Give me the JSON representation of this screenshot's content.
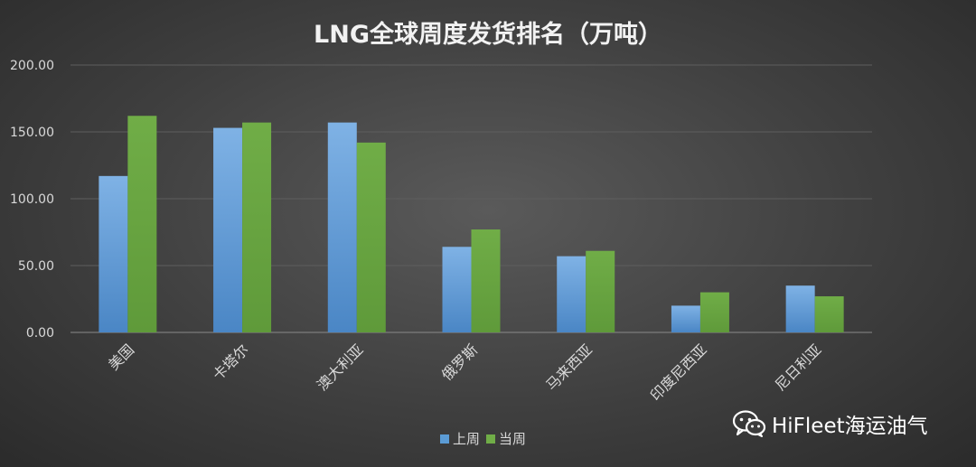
{
  "chart_data": {
    "type": "bar",
    "title": "LNG全球周度发货排名（万吨）",
    "categories": [
      "美国",
      "卡塔尔",
      "澳大利亚",
      "俄罗斯",
      "马来西亚",
      "印度尼西亚",
      "尼日利亚"
    ],
    "series": [
      {
        "name": "上周",
        "color": "#5b9bd5",
        "values": [
          117,
          153,
          157,
          64,
          57,
          20,
          35
        ]
      },
      {
        "name": "当周",
        "color": "#70ad47",
        "values": [
          162,
          157,
          142,
          77,
          61,
          30,
          27
        ]
      }
    ],
    "ylim": [
      0,
      200
    ],
    "yticks": [
      "0.00",
      "50.00",
      "100.00",
      "150.00",
      "200.00"
    ],
    "grid": true,
    "legend_position": "bottom"
  },
  "watermark": {
    "text": "HiFleet海运油气",
    "icon": "wechat-icon"
  }
}
